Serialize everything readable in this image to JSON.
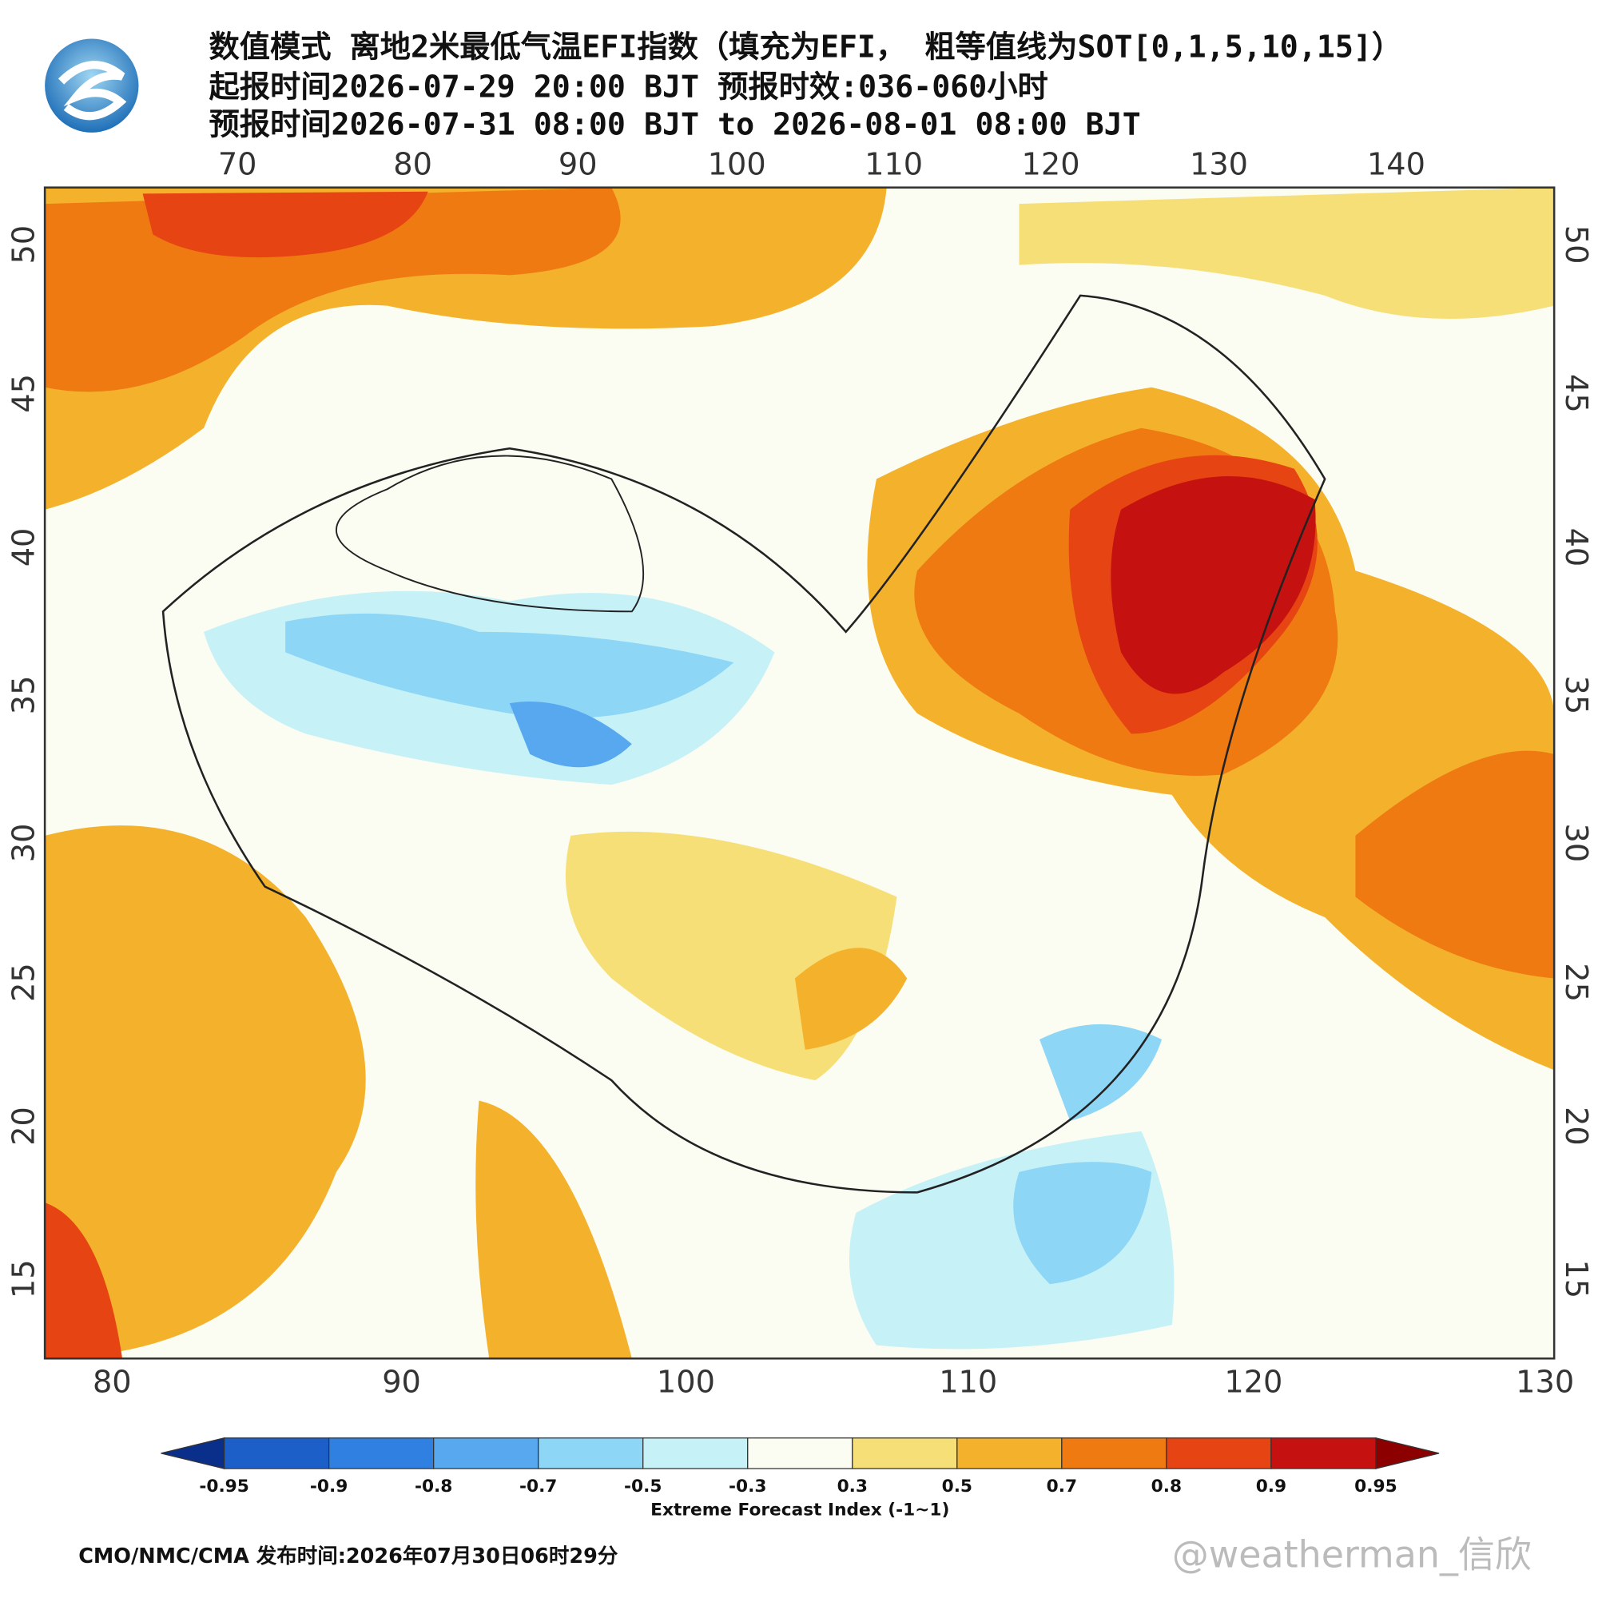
{
  "header": {
    "title": "数值模式 离地2米最低气温EFI指数（填充为EFI， 粗等值线为SOT[0,1,5,10,15]）",
    "lines": [
      "起报时间2026-07-29 20:00 BJT 预报时效:036-060小时",
      "预报时间2026-07-31 08:00 BJT to 2026-08-01 08:00 BJT"
    ]
  },
  "map": {
    "top_lon_labels": [
      "70",
      "80",
      "90",
      "100",
      "110",
      "120",
      "130",
      "140"
    ],
    "bottom_lon_labels": [
      "80",
      "90",
      "100",
      "110",
      "120",
      "130"
    ],
    "left_lat_labels": [
      "50",
      "45",
      "40",
      "35",
      "30",
      "25",
      "20",
      "15"
    ],
    "right_lat_labels": [
      "50",
      "45",
      "40",
      "35",
      "30",
      "25",
      "20",
      "15"
    ]
  },
  "colorbar": {
    "labels": [
      "-0.95",
      "-0.9",
      "-0.8",
      "-0.7",
      "-0.5",
      "-0.3",
      "0.3",
      "0.5",
      "0.7",
      "0.8",
      "0.9",
      "0.95"
    ],
    "colors": [
      "#0a2f8a",
      "#1c5fc8",
      "#2f80e0",
      "#58a8f0",
      "#8ed6f6",
      "#c6f1f7",
      "#fbfcf2",
      "#f7df78",
      "#f4b22c",
      "#ef7a12",
      "#e64412",
      "#c51210",
      "#8c0000"
    ],
    "title": "Extreme Forecast Index (-1~1)"
  },
  "footer": {
    "source": "CMO/NMC/CMA 发布时间:2026年07月30日06时29分",
    "watermark": "@weatherman_信欣"
  }
}
